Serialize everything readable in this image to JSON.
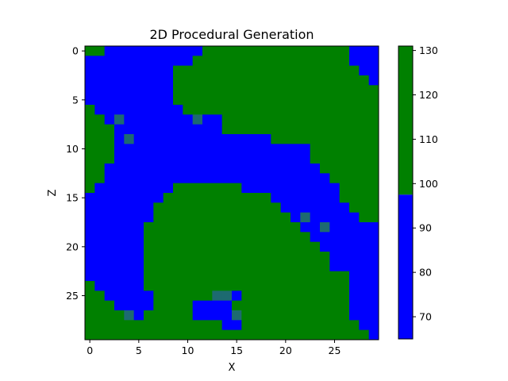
{
  "chart_data": {
    "type": "heatmap",
    "title": "2D Procedural Generation",
    "xlabel": "X",
    "ylabel": "Z",
    "grid": false,
    "legend": "colorbar at right",
    "xlim": [
      -0.5,
      29.5
    ],
    "ylim": [
      29.5,
      -0.5
    ],
    "xticks": [
      0,
      5,
      10,
      15,
      20,
      25
    ],
    "yticks": [
      0,
      5,
      10,
      15,
      20,
      25
    ],
    "colorbar": {
      "ticks": [
        70,
        80,
        90,
        100,
        110,
        120,
        130
      ],
      "range": [
        65,
        131
      ],
      "threshold": 97.5,
      "low_color": "#0000ff",
      "high_color": "#008000"
    },
    "colors": {
      "water": "#0000ff",
      "land": "#008000",
      "shore": "#1d6a70"
    },
    "grid_rows": [
      "GG..........GGGGGGGGGGGGGGG...",
      "...........GGGGGGGGGGGGGGGG...",
      ".........GGGGGGGGGGGGGGGGGGG..",
      ".........GGGGGGGGGGGGGGGGGGGG.",
      ".........GGGGGGGGGGGGGGGGGGGGG",
      ".........GGGGGGGGGGGGGGGGGGGGG",
      "G.........GGGGGGGGGGGGGGGGGGGG",
      "GG.S.......S..GGGGGGGGGGGGGGGG",
      "GGG...........GGGGGGGGGGGGGGGG",
      "GGG.S..............GGGGGGGGGGG",
      "GGG....................GGGGGGG",
      "GGG....................GGGGGGG",
      "GG......................GGGGGG",
      "GG.......................GGGGG",
      "G........GGGGGGG..........GGGG",
      "........GGGGGGGGGGG.......GGGG",
      ".......GGGGGGGGGGGGG.......GGG",
      ".......GGGGGGGGGGGGGG.S.....GG",
      "......GGGGGGGGGGGGGGGG..S.....",
      "......GGGGGGGGGGGGGGGGG.......",
      "......GGGGGGGGGGGGGGGGGG......",
      "......GGGGGGGGGGGGGGGGGGG.....",
      "......GGGGGGGGGGGGGGGGGGG.....",
      "......GGGGGGGGGGGGGGGGGGGGG...",
      "G.....GGGGGGGGGGGGGGGGGGGGG...",
      "GG.....GGGGGGSS.GGGGGGGGGGG...",
      "GGG....GGGG....GGGGGGGGGGGG...",
      "GGGGS.GGGGG....SGGGGGGGGGGG...",
      "GGGGGGGGGGGGGG..GGGGGGGGGGGG..",
      "GGGGGGGGGGGGGGGGGGGGGGGGGGGGG."
    ]
  }
}
